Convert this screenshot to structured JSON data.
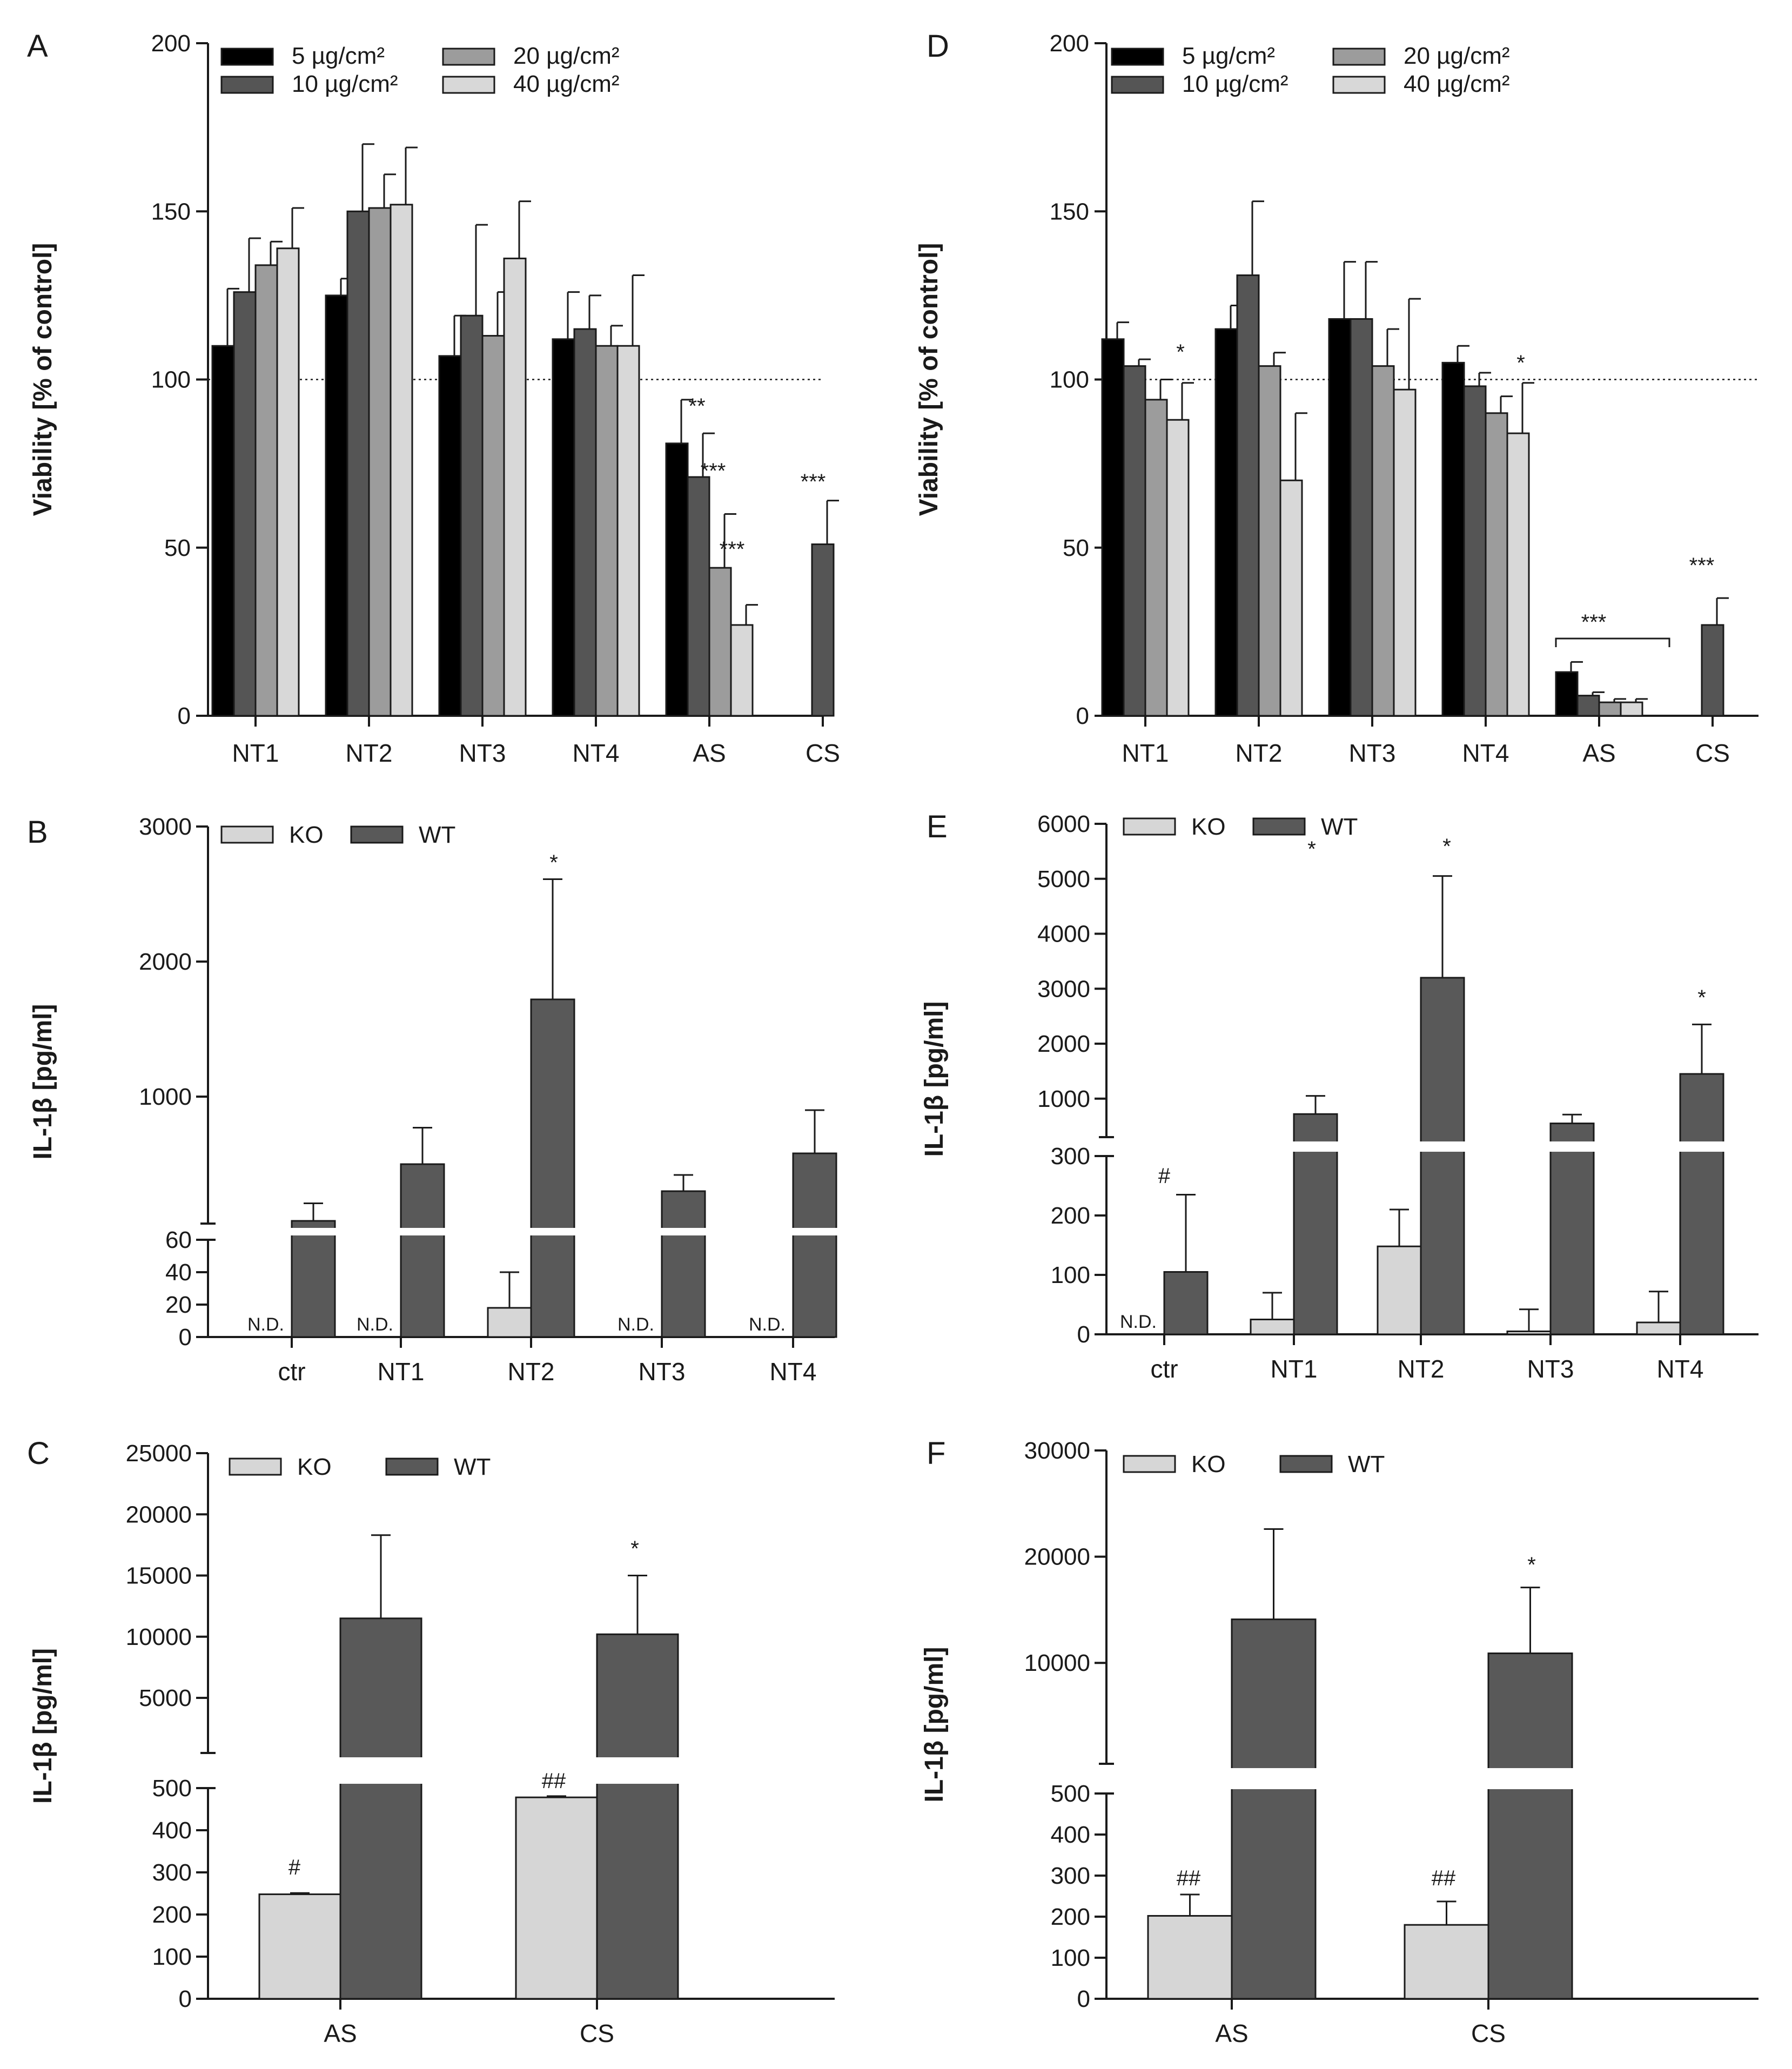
{
  "colors": {
    "s5": "#000000",
    "s10": "#555555",
    "s20": "#9c9c9c",
    "s40": "#d8d8d8",
    "ko": "#d6d6d6",
    "wt": "#595959"
  },
  "chart_data": [
    {
      "id": "A",
      "type": "bar",
      "panel_label": "A",
      "ylabel": "Viability [% of control]",
      "ylim": [
        0,
        200
      ],
      "yticks": [
        "0",
        "50",
        "100",
        "150",
        "200"
      ],
      "reference_line": 100,
      "categories": [
        "NT1",
        "NT2",
        "NT3",
        "NT4",
        "AS",
        "CS"
      ],
      "legend": [
        "5 µg/cm²",
        "10 µg/cm²",
        "20 µg/cm²",
        "40 µg/cm²"
      ],
      "series": [
        {
          "name": "5 µg/cm²",
          "values": [
            110,
            125,
            107,
            112,
            81,
            null
          ],
          "errors": [
            17,
            5,
            12,
            14,
            13,
            null
          ]
        },
        {
          "name": "10 µg/cm²",
          "values": [
            126,
            150,
            119,
            115,
            71,
            51
          ],
          "errors": [
            16,
            20,
            27,
            10,
            13,
            13
          ]
        },
        {
          "name": "20 µg/cm²",
          "values": [
            134,
            151,
            113,
            110,
            44,
            null
          ],
          "errors": [
            7,
            10,
            13,
            6,
            16,
            null
          ]
        },
        {
          "name": "40 µg/cm²",
          "values": [
            139,
            152,
            136,
            110,
            27,
            null
          ],
          "errors": [
            12,
            17,
            17,
            21,
            6,
            null
          ]
        }
      ],
      "annotations": [
        "**",
        "***",
        "***",
        "***"
      ]
    },
    {
      "id": "D",
      "type": "bar",
      "panel_label": "D",
      "ylabel": "Viability [% of control]",
      "ylim": [
        0,
        200
      ],
      "yticks": [
        "0",
        "50",
        "100",
        "150",
        "200"
      ],
      "reference_line": 100,
      "categories": [
        "NT1",
        "NT2",
        "NT3",
        "NT4",
        "AS",
        "CS"
      ],
      "legend": [
        "5 µg/cm²",
        "10 µg/cm²",
        "20 µg/cm²",
        "40 µg/cm²"
      ],
      "series": [
        {
          "name": "5 µg/cm²",
          "values": [
            112,
            115,
            118,
            105,
            13,
            null
          ],
          "errors": [
            5,
            7,
            17,
            5,
            3,
            null
          ]
        },
        {
          "name": "10 µg/cm²",
          "values": [
            104,
            131,
            118,
            98,
            6,
            27
          ],
          "errors": [
            2,
            22,
            17,
            4,
            1,
            8
          ]
        },
        {
          "name": "20 µg/cm²",
          "values": [
            94,
            104,
            104,
            90,
            4,
            null
          ],
          "errors": [
            6,
            4,
            11,
            5,
            1,
            null
          ]
        },
        {
          "name": "40 µg/cm²",
          "values": [
            88,
            70,
            97,
            84,
            4,
            null
          ],
          "errors": [
            11,
            20,
            27,
            15,
            1,
            null
          ]
        }
      ],
      "annotations": [
        "*",
        "*",
        "***",
        "***"
      ]
    },
    {
      "id": "B",
      "type": "bar",
      "panel_label": "B",
      "ylabel": "IL-1β [pg/ml]",
      "broken_axis": {
        "lower": [
          0,
          60
        ],
        "upper": [
          60,
          3000
        ]
      },
      "yticks_lower": [
        "0",
        "20",
        "40",
        "60"
      ],
      "yticks_upper": [
        "1000",
        "2000",
        "3000"
      ],
      "categories": [
        "ctr",
        "NT1",
        "NT2",
        "NT3",
        "NT4"
      ],
      "legend": [
        "KO",
        "WT"
      ],
      "series": [
        {
          "name": "KO",
          "values": [
            null,
            null,
            18,
            null,
            null
          ],
          "errors": [
            null,
            null,
            22,
            null,
            null
          ]
        },
        {
          "name": "WT",
          "values": [
            80,
            500,
            1720,
            300,
            580
          ],
          "errors": [
            130,
            270,
            890,
            120,
            320
          ]
        }
      ],
      "not_detected_label": "N.D.",
      "annotations": [
        "*"
      ]
    },
    {
      "id": "E",
      "type": "bar",
      "panel_label": "E",
      "ylabel": "IL-1β [pg/ml]",
      "broken_axis": {
        "lower": [
          0,
          300
        ],
        "upper": [
          300,
          6000
        ]
      },
      "yticks_lower": [
        "0",
        "100",
        "200",
        "300"
      ],
      "yticks_upper": [
        "1000",
        "2000",
        "3000",
        "4000",
        "5000",
        "6000"
      ],
      "categories": [
        "ctr",
        "NT1",
        "NT2",
        "NT3",
        "NT4"
      ],
      "legend": [
        "KO",
        "WT"
      ],
      "series": [
        {
          "name": "KO",
          "values": [
            null,
            25,
            148,
            5,
            20
          ],
          "errors": [
            null,
            45,
            62,
            37,
            52
          ]
        },
        {
          "name": "WT",
          "values": [
            105,
            720,
            3200,
            550,
            1450
          ],
          "errors": [
            130,
            330,
            1850,
            160,
            900
          ]
        }
      ],
      "not_detected_label": "N.D.",
      "annotations": [
        "*",
        "*",
        "*",
        "#"
      ]
    },
    {
      "id": "C",
      "type": "bar",
      "panel_label": "C",
      "ylabel": "IL-1β [pg/ml]",
      "broken_axis": {
        "lower": [
          0,
          500
        ],
        "upper": [
          500,
          25000
        ]
      },
      "yticks_lower": [
        "0",
        "100",
        "200",
        "300",
        "400",
        "500"
      ],
      "yticks_upper": [
        "5000",
        "10000",
        "15000",
        "20000",
        "25000"
      ],
      "categories": [
        "AS",
        "CS"
      ],
      "legend": [
        "KO",
        "WT"
      ],
      "series": [
        {
          "name": "KO",
          "values": [
            248,
            478
          ],
          "errors": [
            3,
            3
          ]
        },
        {
          "name": "WT",
          "values": [
            11500,
            10200
          ],
          "errors": [
            6800,
            4800
          ]
        }
      ],
      "annotations": [
        "#",
        "##",
        "*"
      ]
    },
    {
      "id": "F",
      "type": "bar",
      "panel_label": "F",
      "ylabel": "IL-1β [pg/ml]",
      "broken_axis": {
        "lower": [
          0,
          500
        ],
        "upper": [
          500,
          30000
        ]
      },
      "yticks_lower": [
        "0",
        "100",
        "200",
        "300",
        "400",
        "500"
      ],
      "yticks_upper": [
        "10000",
        "20000",
        "30000"
      ],
      "categories": [
        "AS",
        "CS"
      ],
      "legend": [
        "KO",
        "WT"
      ],
      "series": [
        {
          "name": "KO",
          "values": [
            202,
            180
          ],
          "errors": [
            52,
            57
          ]
        },
        {
          "name": "WT",
          "values": [
            14100,
            10900
          ],
          "errors": [
            8500,
            6200
          ]
        }
      ],
      "annotations": [
        "##",
        "##",
        "*"
      ]
    }
  ]
}
